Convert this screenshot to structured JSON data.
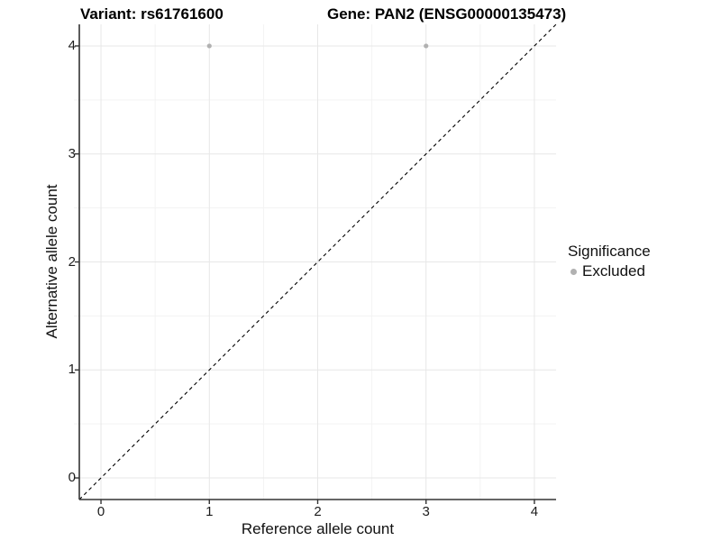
{
  "chart_data": {
    "type": "scatter",
    "title_left": "Variant: rs61761600",
    "title_right": "Gene: PAN2 (ENSG00000135473)",
    "xlabel": "Reference allele count",
    "ylabel": "Alternative allele count",
    "xlim": [
      -0.2,
      4.2
    ],
    "ylim": [
      -0.2,
      4.2
    ],
    "xticks": [
      0,
      1,
      2,
      3,
      4
    ],
    "yticks": [
      0,
      1,
      2,
      3,
      4
    ],
    "grid": {
      "major": true,
      "minor": true
    },
    "series": [
      {
        "name": "Excluded",
        "marker": "circle",
        "color": "#b1b1b1",
        "points": [
          {
            "x": 1,
            "y": 4
          },
          {
            "x": 3,
            "y": 4
          }
        ]
      }
    ],
    "reference_line": {
      "type": "identity",
      "from": [
        -0.2,
        -0.2
      ],
      "to": [
        4.2,
        4.2
      ],
      "style": "dashed",
      "color": "#000000"
    },
    "legend": {
      "title": "Significance",
      "position": "right",
      "items": [
        {
          "label": "Excluded",
          "color": "#b1b1b1"
        }
      ]
    }
  },
  "colors": {
    "background": "#ffffff",
    "grid_major": "#e7e7e7",
    "grid_minor": "#f3f3f3",
    "axis_line": "#333333",
    "tick_mark": "#333333",
    "text": "#111111"
  }
}
